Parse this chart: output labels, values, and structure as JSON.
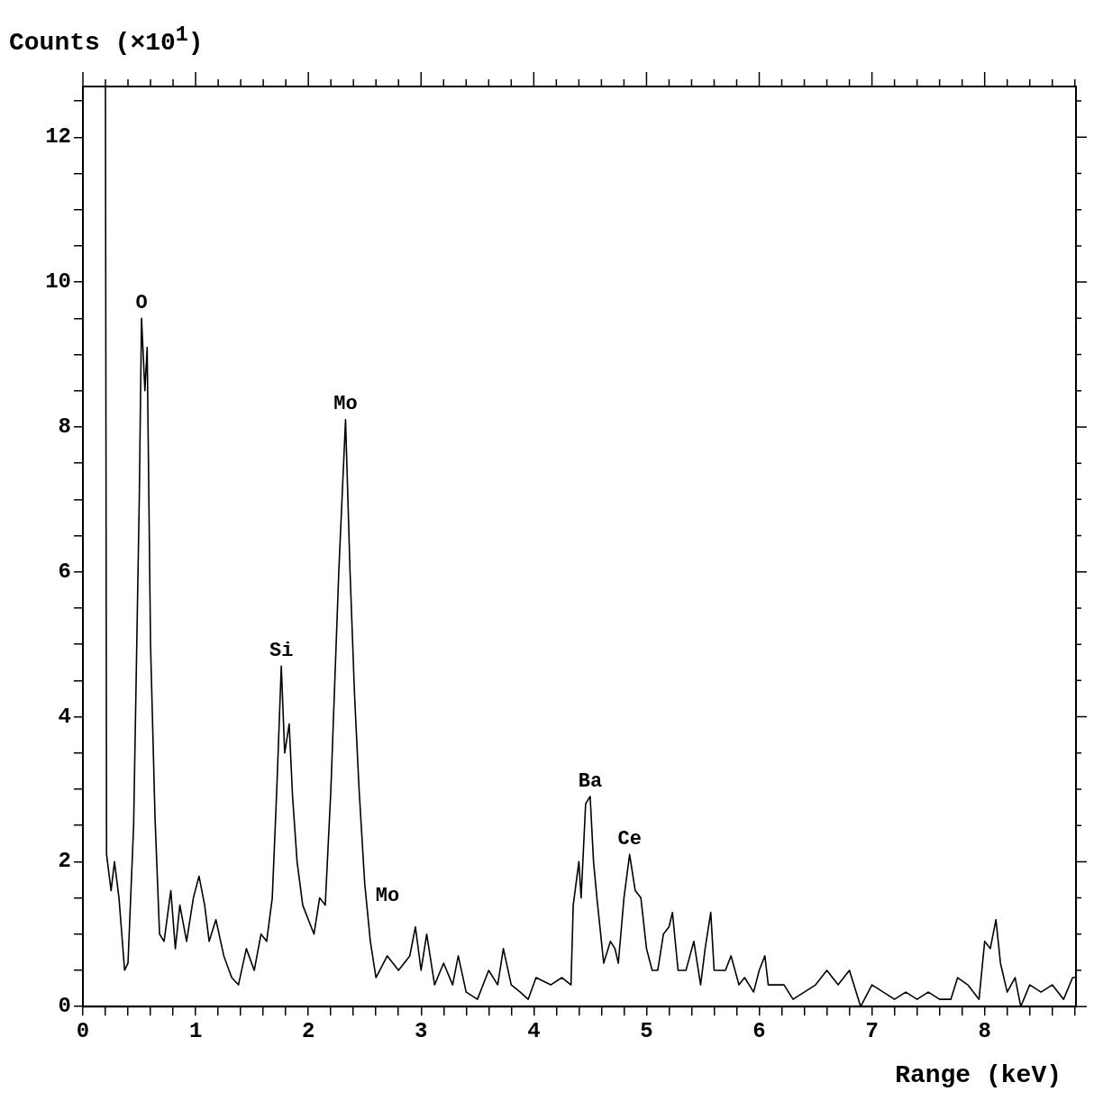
{
  "chart_data": {
    "type": "line",
    "xlabel": "Range (keV)",
    "ylabel": "Counts (×10$^{1}$)",
    "xlim": [
      0,
      8.81
    ],
    "ylim": [
      0,
      12.7
    ],
    "xticks": [
      0,
      {
        "value": 0.2,
        "label": null
      },
      {
        "value": 0.4,
        "label": null
      },
      {
        "value": 0.6,
        "label": null
      },
      {
        "value": 0.8,
        "label": null
      },
      1,
      {
        "value": 1.2,
        "label": null
      },
      {
        "value": 1.4,
        "label": null
      },
      {
        "value": 1.6,
        "label": null
      },
      {
        "value": 1.8,
        "label": null
      },
      2,
      {
        "value": 2.2,
        "label": null
      },
      {
        "value": 2.4,
        "label": null
      },
      {
        "value": 2.6,
        "label": null
      },
      {
        "value": 2.8,
        "label": null
      },
      3,
      {
        "value": 3.2,
        "label": null
      },
      {
        "value": 3.4,
        "label": null
      },
      {
        "value": 3.6,
        "label": null
      },
      {
        "value": 3.8,
        "label": null
      },
      4,
      {
        "value": 4.2,
        "label": null
      },
      {
        "value": 4.4,
        "label": null
      },
      {
        "value": 4.6,
        "label": null
      },
      {
        "value": 4.8,
        "label": null
      },
      5,
      {
        "value": 5.2,
        "label": null
      },
      {
        "value": 5.4,
        "label": null
      },
      {
        "value": 5.6,
        "label": null
      },
      {
        "value": 5.8,
        "label": null
      },
      6,
      {
        "value": 6.2,
        "label": null
      },
      {
        "value": 6.4,
        "label": null
      },
      {
        "value": 6.6,
        "label": null
      },
      {
        "value": 6.8,
        "label": null
      },
      7,
      {
        "value": 7.2,
        "label": null
      },
      {
        "value": 7.4,
        "label": null
      },
      {
        "value": 7.6,
        "label": null
      },
      {
        "value": 7.8,
        "label": null
      },
      8,
      {
        "value": 8.2,
        "label": null
      },
      {
        "value": 8.4,
        "label": null
      },
      {
        "value": 8.6,
        "label": null
      },
      {
        "value": 8.8,
        "label": null
      }
    ],
    "yticks": [
      0,
      {
        "value": 0.5,
        "label": null
      },
      {
        "value": 1,
        "label": null
      },
      {
        "value": 1.5,
        "label": null
      },
      2,
      {
        "value": 2.5,
        "label": null
      },
      {
        "value": 3,
        "label": null
      },
      {
        "value": 3.5,
        "label": null
      },
      4,
      {
        "value": 4.5,
        "label": null
      },
      {
        "value": 5,
        "label": null
      },
      {
        "value": 5.5,
        "label": null
      },
      6,
      {
        "value": 6.5,
        "label": null
      },
      {
        "value": 7,
        "label": null
      },
      {
        "value": 7.5,
        "label": null
      },
      8,
      {
        "value": 8.5,
        "label": null
      },
      {
        "value": 9,
        "label": null
      },
      {
        "value": 9.5,
        "label": null
      },
      10,
      {
        "value": 10.5,
        "label": null
      },
      {
        "value": 11,
        "label": null
      },
      {
        "value": 11.5,
        "label": null
      },
      12,
      {
        "value": 12.5,
        "label": null
      }
    ],
    "grid": false,
    "legend": false,
    "marker": "none",
    "line_style": "solid",
    "annotations": [
      {
        "text": "O",
        "x": 0.52,
        "y": 9.5
      },
      {
        "text": "Mo",
        "x": 2.33,
        "y": 8.1
      },
      {
        "text": "Si",
        "x": 1.76,
        "y": 4.7
      },
      {
        "text": "Mo",
        "x": 2.5,
        "y": 1.7
      },
      {
        "text": "Ba",
        "x": 4.5,
        "y": 2.9
      },
      {
        "text": "Ce",
        "x": 4.85,
        "y": 2.1
      }
    ],
    "series": [
      {
        "color": "#000000",
        "x": [
          0.2,
          0.21,
          0.25,
          0.28,
          0.32,
          0.37,
          0.4,
          0.45,
          0.5,
          0.52,
          0.55,
          0.57,
          0.6,
          0.64,
          0.68,
          0.72,
          0.78,
          0.82,
          0.86,
          0.92,
          0.98,
          1.03,
          1.08,
          1.12,
          1.18,
          1.25,
          1.32,
          1.38,
          1.45,
          1.52,
          1.58,
          1.63,
          1.68,
          1.72,
          1.76,
          1.79,
          1.83,
          1.86,
          1.9,
          1.95,
          2.0,
          2.05,
          2.1,
          2.15,
          2.2,
          2.27,
          2.33,
          2.37,
          2.41,
          2.45,
          2.5,
          2.55,
          2.6,
          2.7,
          2.8,
          2.9,
          2.95,
          3.0,
          3.05,
          3.12,
          3.2,
          3.28,
          3.33,
          3.4,
          3.5,
          3.6,
          3.68,
          3.73,
          3.8,
          3.88,
          3.95,
          4.02,
          4.15,
          4.25,
          4.33,
          4.35,
          4.4,
          4.42,
          4.46,
          4.5,
          4.53,
          4.56,
          4.62,
          4.68,
          4.72,
          4.75,
          4.8,
          4.85,
          4.9,
          4.95,
          5.0,
          5.05,
          5.1,
          5.15,
          5.2,
          5.23,
          5.28,
          5.35,
          5.42,
          5.48,
          5.52,
          5.57,
          5.6,
          5.7,
          5.75,
          5.82,
          5.87,
          5.95,
          6.0,
          6.05,
          6.08,
          6.15,
          6.22,
          6.3,
          6.4,
          6.5,
          6.6,
          6.7,
          6.8,
          6.9,
          7.0,
          7.1,
          7.2,
          7.3,
          7.4,
          7.5,
          7.6,
          7.7,
          7.76,
          7.85,
          7.95,
          8.0,
          8.05,
          8.1,
          8.14,
          8.2,
          8.27,
          8.32,
          8.4,
          8.5,
          8.6,
          8.7,
          8.78,
          8.81
        ],
        "values": [
          12.7,
          2.1,
          1.6,
          2.0,
          1.5,
          0.5,
          0.6,
          2.5,
          7.0,
          9.5,
          8.5,
          9.1,
          5.0,
          2.6,
          1.0,
          0.9,
          1.6,
          0.8,
          1.4,
          0.9,
          1.5,
          1.8,
          1.4,
          0.9,
          1.2,
          0.7,
          0.4,
          0.3,
          0.8,
          0.5,
          1.0,
          0.9,
          1.5,
          3.0,
          4.7,
          3.5,
          3.9,
          2.9,
          2.0,
          1.4,
          1.2,
          1.0,
          1.5,
          1.4,
          3.0,
          6.0,
          8.1,
          6.0,
          4.3,
          3.0,
          1.7,
          0.9,
          0.4,
          0.7,
          0.5,
          0.7,
          1.1,
          0.5,
          1.0,
          0.3,
          0.6,
          0.3,
          0.7,
          0.2,
          0.1,
          0.5,
          0.3,
          0.8,
          0.3,
          0.2,
          0.1,
          0.4,
          0.3,
          0.4,
          0.3,
          1.4,
          2.0,
          1.5,
          2.8,
          2.9,
          2.0,
          1.5,
          0.6,
          0.9,
          0.8,
          0.6,
          1.5,
          2.1,
          1.6,
          1.5,
          0.8,
          0.5,
          0.5,
          1.0,
          1.1,
          1.3,
          0.5,
          0.5,
          0.9,
          0.3,
          0.8,
          1.3,
          0.5,
          0.5,
          0.7,
          0.3,
          0.4,
          0.2,
          0.5,
          0.7,
          0.3,
          0.3,
          0.3,
          0.1,
          0.2,
          0.3,
          0.5,
          0.3,
          0.5,
          0.0,
          0.3,
          0.2,
          0.1,
          0.2,
          0.1,
          0.2,
          0.1,
          0.1,
          0.4,
          0.3,
          0.1,
          0.9,
          0.8,
          1.2,
          0.6,
          0.2,
          0.4,
          0.0,
          0.3,
          0.2,
          0.3,
          0.1,
          0.4,
          0.4
        ]
      }
    ]
  }
}
